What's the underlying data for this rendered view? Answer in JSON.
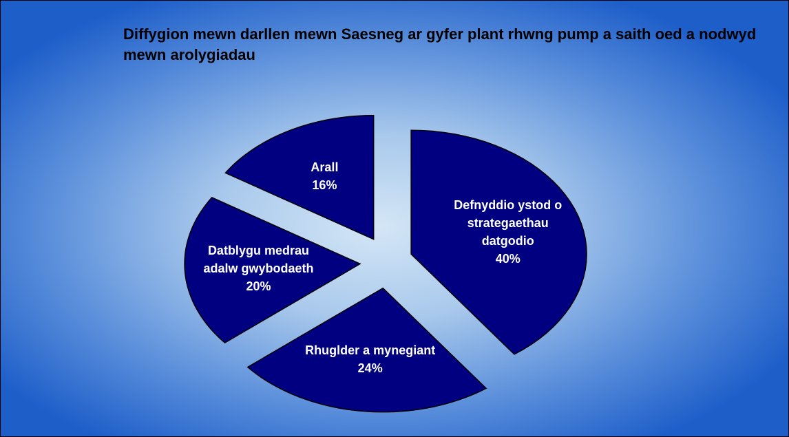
{
  "chart_data": {
    "type": "pie",
    "title": "Diffygion mewn darllen mewn Saesneg ar gyfer plant rhwng pump a saith oed a nodwyd mewn arolygiadau",
    "categories": [
      "Defnyddio ystod o strategaethau datgodio",
      "Rhuglder a mynegiant",
      "Datblygu medrau adalw gwybodaeth",
      "Arall"
    ],
    "values": [
      40,
      24,
      20,
      16
    ],
    "value_labels": [
      "40%",
      "24%",
      "20%",
      "16%"
    ],
    "color": "#000080"
  }
}
